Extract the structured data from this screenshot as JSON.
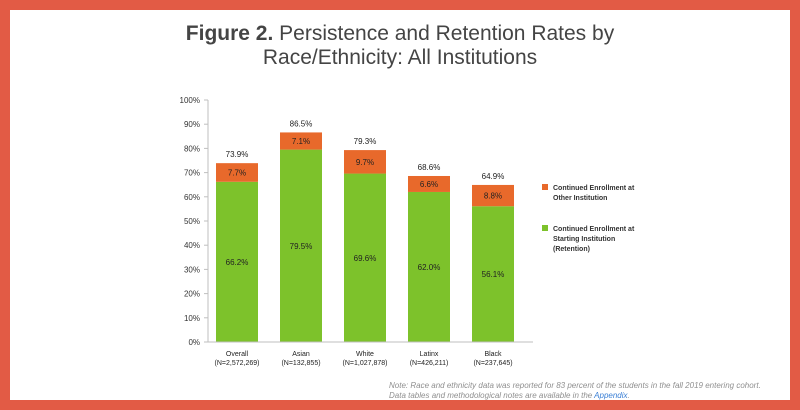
{
  "title": {
    "lead": "Figure 2.",
    "line1": "Persistence and Retention Rates by",
    "line2": "Race/Ethnicity: All Institutions"
  },
  "chart_data": {
    "type": "bar",
    "stacked": true,
    "categories": [
      "Overall",
      "Asian",
      "White",
      "Latinx",
      "Black"
    ],
    "category_n": [
      "(N=2,572,269)",
      "(N=132,855)",
      "(N=1,027,878)",
      "(N=426,211)",
      "(N=237,645)"
    ],
    "series": [
      {
        "name": "Continued Enrollment at Starting Institution (Retention)",
        "legend_lines": [
          "Continued Enrollment at",
          "Starting Institution",
          "(Retention)"
        ],
        "color": "#7dc22b",
        "values": [
          66.2,
          79.5,
          69.6,
          62.0,
          56.1
        ],
        "labels": [
          "66.2%",
          "79.5%",
          "69.6%",
          "62.0%",
          "56.1%"
        ]
      },
      {
        "name": "Continued Enrollment at Other Institution",
        "legend_lines": [
          "Continued Enrollment at",
          "Other Institution"
        ],
        "color": "#e8692b",
        "values": [
          7.7,
          7.1,
          9.7,
          6.6,
          8.8
        ],
        "labels": [
          "7.7%",
          "7.1%",
          "9.7%",
          "6.6%",
          "8.8%"
        ]
      }
    ],
    "totals": [
      73.9,
      86.5,
      79.3,
      68.6,
      64.9
    ],
    "total_labels": [
      "73.9%",
      "86.5%",
      "79.3%",
      "68.6%",
      "64.9%"
    ],
    "ylim": [
      0,
      100
    ],
    "yticks": [
      "0%",
      "10%",
      "20%",
      "30%",
      "40%",
      "50%",
      "60%",
      "70%",
      "80%",
      "90%",
      "100%"
    ],
    "grid": false,
    "legend_position": "right"
  },
  "note": {
    "line1": "Note: Race and ethnicity data was reported for 83 percent of the students in the fall 2019 entering cohort.",
    "line2_prefix": "Data tables and methodological notes are available in the ",
    "link": "Appendix",
    "line2_suffix": "."
  }
}
